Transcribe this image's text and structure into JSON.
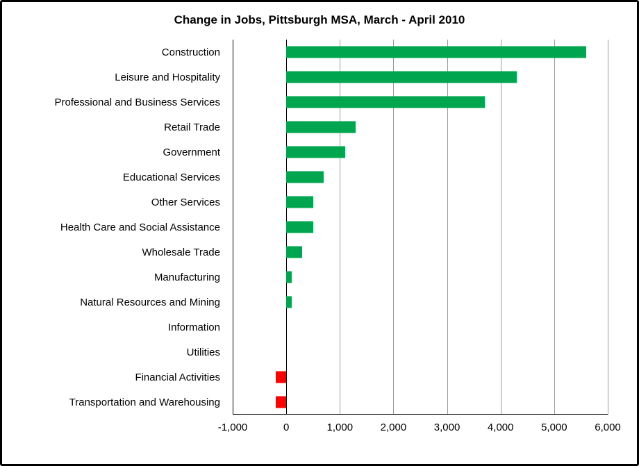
{
  "window": {
    "kind": "embedded-excel-chart"
  },
  "colors": {
    "positive_bar": "#00A64F",
    "negative_bar": "#FF0000",
    "gridline": "#9A9A9A",
    "axis_line": "#000000",
    "background": "#FFFFFF",
    "frame_border": "#000000"
  },
  "chart_data": {
    "type": "bar",
    "orientation": "horizontal",
    "title": "Change in Jobs, Pittsburgh MSA, March - April 2010",
    "xlabel": "",
    "ylabel": "",
    "categories": [
      "Construction",
      "Leisure and Hospitality",
      "Professional and Business Services",
      "Retail Trade",
      "Government",
      "Educational Services",
      "Other Services",
      "Health Care and Social Assistance",
      "Wholesale Trade",
      "Manufacturing",
      "Natural Resources and Mining",
      "Information",
      "Utilities",
      "Financial Activities",
      "Transportation and Warehousing"
    ],
    "values": [
      5600,
      4300,
      3700,
      1300,
      1100,
      700,
      500,
      500,
      300,
      100,
      100,
      0,
      0,
      -200,
      -200
    ],
    "xlim": [
      -1000,
      6000
    ],
    "xticks": [
      -1000,
      0,
      1000,
      2000,
      3000,
      4000,
      5000,
      6000
    ],
    "xtick_labels": [
      "-1,000",
      "0",
      "1,000",
      "2,000",
      "3,000",
      "4,000",
      "5,000",
      "6,000"
    ],
    "grid": true,
    "legend": false
  }
}
